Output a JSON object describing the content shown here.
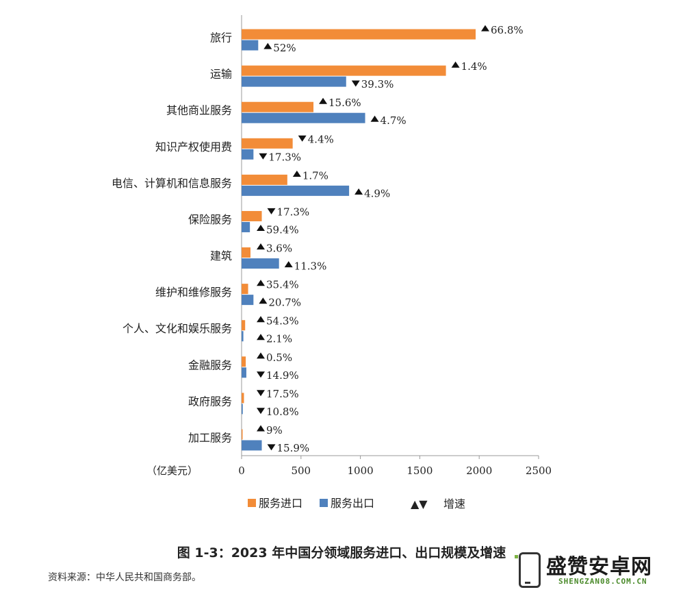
{
  "chart_data": {
    "type": "bar",
    "orientation": "horizontal",
    "categories": [
      "旅行",
      "运输",
      "其他商业服务",
      "知识产权使用费",
      "电信、计算机和信息服务",
      "保险服务",
      "建筑",
      "维护和维修服务",
      "个人、文化和娱乐服务",
      "金融服务",
      "政府服务",
      "加工服务"
    ],
    "series": [
      {
        "name": "服务进口",
        "color": "#f28c38",
        "values": [
          1970,
          1720,
          605,
          430,
          385,
          170,
          75,
          55,
          30,
          35,
          20,
          5
        ],
        "rates": [
          "▲66.8%",
          "▲1.4%",
          "▲15.6%",
          "▼4.4%",
          "▲1.7%",
          "▼17.3%",
          "▲3.6%",
          "▲35.4%",
          "▲54.3%",
          "▲0.5%",
          "▼17.5%",
          "▲9%"
        ]
      },
      {
        "name": "服务出口",
        "color": "#4f81bd",
        "values": [
          140,
          880,
          1040,
          100,
          905,
          70,
          315,
          100,
          15,
          40,
          10,
          170
        ],
        "rates": [
          "▲52%",
          "▼39.3%",
          "▲4.7%",
          "▼17.3%",
          "▲4.9%",
          "▲59.4%",
          "▲11.3%",
          "▲20.7%",
          "▲2.1%",
          "▼14.9%",
          "▼10.8%",
          "▼15.9%"
        ]
      }
    ],
    "x_ticks": [
      "0",
      "500",
      "1000",
      "1500",
      "2000",
      "2500"
    ],
    "xlim": [
      0,
      2500
    ],
    "unit_label": "（亿美元）",
    "legend": {
      "items": [
        "服务进口",
        "服务出口"
      ],
      "rate_symbol": "▲▼",
      "rate_label": "增速",
      "position": "bottom"
    }
  },
  "caption": "图 1-3：2023 年中国分领域服务进口、出口规模及增速",
  "source": "资料来源：中华人民共和国商务部。",
  "watermark": {
    "name": "盛赞安卓网",
    "domain": "SHENGZAN08.COM.CN"
  }
}
